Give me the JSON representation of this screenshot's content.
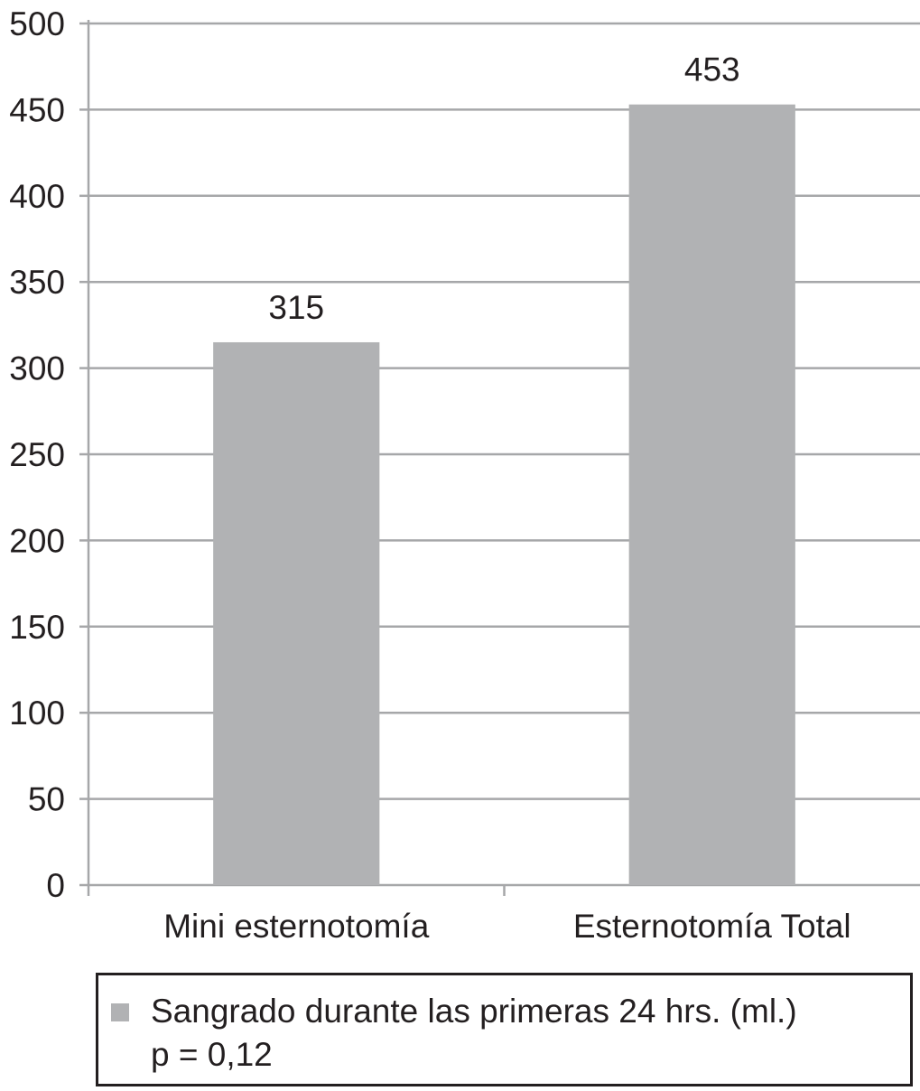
{
  "chart_data": {
    "type": "bar",
    "title": "",
    "xlabel": "",
    "ylabel": "",
    "categories": [
      "Mini esternotomía",
      "Esternotomía Total"
    ],
    "series": [
      {
        "name": "Sangrado durante las primeras 24 hrs. (ml.)",
        "values": [
          315,
          453
        ],
        "data_labels": [
          "315",
          "453"
        ],
        "color": "#b1b2b4"
      }
    ],
    "ylim": [
      0,
      500
    ],
    "yticks": [
      0,
      50,
      100,
      150,
      200,
      250,
      300,
      350,
      400,
      450,
      500
    ],
    "grid": true,
    "legend_position": "bottom",
    "annotations": [
      "p = 0,12"
    ]
  },
  "legend": {
    "label": "Sangrado durante las primeras 24 hrs. (ml.)",
    "note": "p = 0,12"
  },
  "colors": {
    "bar": "#b1b2b4",
    "grid": "#a6a7a9",
    "axis": "#a6a7a9",
    "text": "#231f20"
  }
}
